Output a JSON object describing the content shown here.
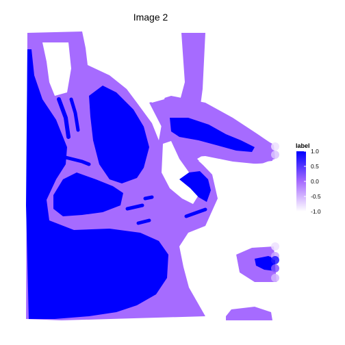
{
  "chart_data": {
    "type": "heatmap",
    "title": "Image 2",
    "xlabel": "",
    "ylabel": "",
    "grid": false,
    "legend": {
      "title": "label",
      "position": "right",
      "range": [
        -1.0,
        1.0
      ],
      "ticks": [
        1.0,
        0.5,
        0.0,
        -0.5,
        -1.0
      ],
      "tick_labels": [
        "1.0",
        "0.5",
        "0.0",
        "-0.5",
        "-1.0"
      ],
      "low_color": "#ffffff",
      "mid_color": "#a66bff",
      "high_color": "#0000ff"
    },
    "levels": [
      {
        "name": "background",
        "label_value": -1.0
      },
      {
        "name": "boundary",
        "label_value": 0.0
      },
      {
        "name": "object",
        "label_value": 1.0
      }
    ],
    "edge_markers": [
      {
        "row": "upper",
        "values": [
          -0.8,
          -0.6
        ]
      },
      {
        "row": "lower",
        "values": [
          -0.8,
          -0.4,
          0.8,
          0.2,
          -0.5
        ]
      }
    ]
  },
  "colors": {
    "object": "#0000ff",
    "boundary": "#a66bff",
    "background": "#ffffff"
  }
}
